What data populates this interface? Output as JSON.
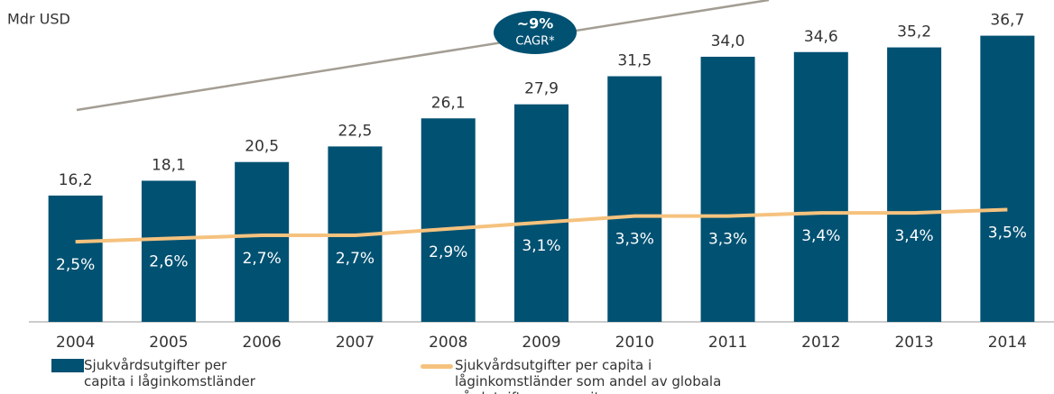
{
  "chart_data": {
    "type": "bar",
    "ylabel": "Mdr USD",
    "annotation": [
      "~9%",
      "CAGR*"
    ],
    "categories": [
      "2004",
      "2005",
      "2006",
      "2007",
      "2008",
      "2009",
      "2010",
      "2011",
      "2012",
      "2013",
      "2014"
    ],
    "ylim": [
      0,
      37
    ],
    "y2lim": [
      0,
      9
    ],
    "series": [
      {
        "name": "Sjukvårdsutgifter per capita i låginkomstländer",
        "type": "bar",
        "color": "#005172",
        "values": [
          16.2,
          18.1,
          20.5,
          22.5,
          26.1,
          27.9,
          31.5,
          34.0,
          34.6,
          35.2,
          36.7
        ],
        "value_labels": [
          "16,2",
          "18,1",
          "20,5",
          "22,5",
          "26,1",
          "27,9",
          "31,5",
          "34,0",
          "34,6",
          "35,2",
          "36,7"
        ]
      },
      {
        "name": "Sjukvårdsutgifter per capita i låginkomstländer som andel av globala vårdutgifter per capita",
        "type": "line",
        "axis": "y2",
        "color": "#f5c27e",
        "values": [
          2.5,
          2.6,
          2.7,
          2.7,
          2.9,
          3.1,
          3.3,
          3.3,
          3.4,
          3.4,
          3.5
        ],
        "value_labels": [
          "2,5%",
          "2,6%",
          "2,7%",
          "2,7%",
          "2,9%",
          "3,1%",
          "3,3%",
          "3,3%",
          "3,4%",
          "3,4%",
          "3,5%"
        ]
      }
    ]
  }
}
